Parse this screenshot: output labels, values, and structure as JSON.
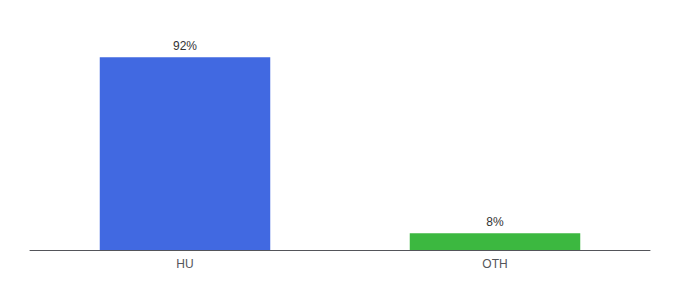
{
  "chart_data": {
    "type": "bar",
    "categories": [
      "HU",
      "OTH"
    ],
    "values": [
      92,
      8
    ],
    "value_labels": [
      "92%",
      "8%"
    ],
    "colors": [
      "#4169e1",
      "#3cb840"
    ],
    "ylim": [
      0,
      105
    ],
    "grid": false,
    "data_labels": true,
    "tick_labels": "x"
  }
}
